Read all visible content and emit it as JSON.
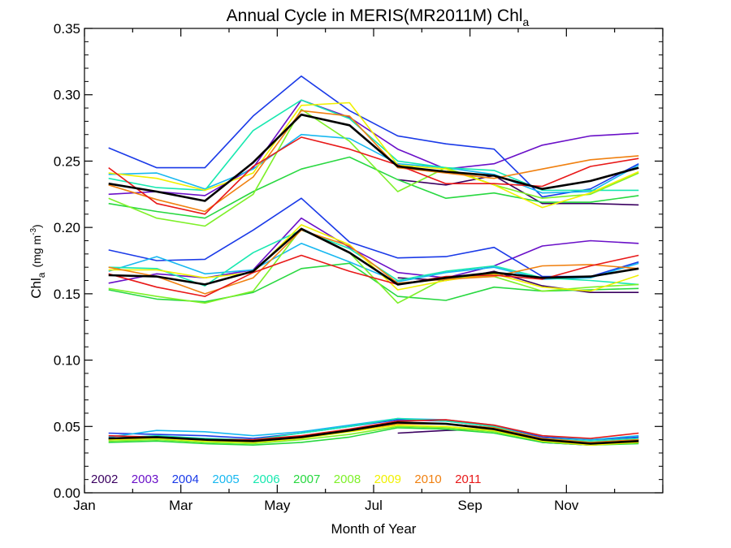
{
  "chart_data": {
    "type": "line",
    "title": "Annual Cycle in MERIS(MR2011M) Chl",
    "title_subscript": "a",
    "xlabel": "Month of Year",
    "ylabel": "Chl",
    "ylabel_subscript": "a",
    "ylabel_units": "(mg m",
    "ylabel_units_exp": "-3",
    "ylabel_units_close": ")",
    "xlim": [
      1,
      13
    ],
    "ylim": [
      0.0,
      0.35
    ],
    "xticks": [
      {
        "value": 1,
        "label": "Jan"
      },
      {
        "value": 3,
        "label": "Mar"
      },
      {
        "value": 5,
        "label": "May"
      },
      {
        "value": 7,
        "label": "Jul"
      },
      {
        "value": 9,
        "label": "Sep"
      },
      {
        "value": 11,
        "label": "Nov"
      }
    ],
    "yticks": [
      {
        "value": 0.0,
        "label": "0.00"
      },
      {
        "value": 0.05,
        "label": "0.05"
      },
      {
        "value": 0.1,
        "label": "0.10"
      },
      {
        "value": 0.15,
        "label": "0.15"
      },
      {
        "value": 0.2,
        "label": "0.20"
      },
      {
        "value": 0.25,
        "label": "0.25"
      },
      {
        "value": 0.3,
        "label": "0.30"
      },
      {
        "value": 0.35,
        "label": "0.35"
      }
    ],
    "grid": false,
    "legend_placement": "bottom-left",
    "x": [
      1.5,
      2.5,
      3.5,
      4.5,
      5.5,
      6.5,
      7.5,
      8.5,
      9.5,
      10.5,
      11.5,
      12.5
    ],
    "series": [
      {
        "name": "2002",
        "color": "#3a0060",
        "upper": [
          null,
          null,
          null,
          null,
          null,
          null,
          0.236,
          0.232,
          0.239,
          0.218,
          0.218,
          0.217
        ],
        "middle": [
          null,
          null,
          null,
          null,
          null,
          null,
          0.162,
          0.16,
          0.167,
          0.156,
          0.151,
          0.151
        ],
        "lower": [
          null,
          null,
          null,
          null,
          null,
          null,
          0.045,
          0.047,
          0.048,
          0.038,
          0.036,
          0.038
        ]
      },
      {
        "name": "2003",
        "color": "#6a10c8",
        "upper": [
          0.225,
          0.227,
          0.224,
          0.245,
          0.296,
          0.283,
          0.259,
          0.244,
          0.248,
          0.262,
          0.269,
          0.271
        ],
        "middle": [
          0.158,
          0.165,
          0.162,
          0.168,
          0.207,
          0.185,
          0.166,
          0.162,
          0.171,
          0.186,
          0.19,
          0.188
        ],
        "lower": [
          0.04,
          0.042,
          0.04,
          0.039,
          0.042,
          0.047,
          0.052,
          0.052,
          0.049,
          0.041,
          0.038,
          0.04
        ]
      },
      {
        "name": "2004",
        "color": "#1a3ae8",
        "upper": [
          0.26,
          0.245,
          0.245,
          0.284,
          0.314,
          0.288,
          0.269,
          0.263,
          0.259,
          0.223,
          0.229,
          0.248
        ],
        "middle": [
          0.183,
          0.175,
          0.176,
          0.198,
          0.222,
          0.189,
          0.177,
          0.178,
          0.185,
          0.163,
          0.163,
          0.174
        ],
        "lower": [
          0.045,
          0.044,
          0.043,
          0.041,
          0.045,
          0.05,
          0.055,
          0.054,
          0.05,
          0.042,
          0.04,
          0.042
        ]
      },
      {
        "name": "2005",
        "color": "#18b8f0",
        "upper": [
          0.24,
          0.241,
          0.229,
          0.244,
          0.27,
          0.267,
          0.248,
          0.245,
          0.24,
          0.226,
          0.227,
          0.247
        ],
        "middle": [
          0.167,
          0.178,
          0.165,
          0.168,
          0.188,
          0.174,
          0.159,
          0.166,
          0.17,
          0.161,
          0.162,
          0.173
        ],
        "lower": [
          0.042,
          0.047,
          0.046,
          0.043,
          0.046,
          0.051,
          0.056,
          0.055,
          0.051,
          0.043,
          0.04,
          0.043
        ]
      },
      {
        "name": "2006",
        "color": "#18e8b0",
        "upper": [
          0.237,
          0.23,
          0.228,
          0.273,
          0.296,
          0.282,
          0.25,
          0.245,
          0.243,
          0.228,
          0.228,
          0.228
        ],
        "middle": [
          0.17,
          0.169,
          0.156,
          0.181,
          0.198,
          0.184,
          0.16,
          0.167,
          0.171,
          0.162,
          0.16,
          0.157
        ],
        "lower": [
          0.041,
          0.043,
          0.041,
          0.04,
          0.045,
          0.05,
          0.056,
          0.054,
          0.05,
          0.041,
          0.039,
          0.041
        ]
      },
      {
        "name": "2007",
        "color": "#28d840",
        "upper": [
          0.218,
          0.212,
          0.207,
          0.227,
          0.244,
          0.253,
          0.236,
          0.222,
          0.226,
          0.219,
          0.219,
          0.224
        ],
        "middle": [
          0.153,
          0.146,
          0.144,
          0.151,
          0.169,
          0.173,
          0.148,
          0.145,
          0.155,
          0.152,
          0.153,
          0.154
        ],
        "lower": [
          0.038,
          0.039,
          0.037,
          0.036,
          0.038,
          0.042,
          0.049,
          0.048,
          0.045,
          0.038,
          0.036,
          0.037
        ]
      },
      {
        "name": "2008",
        "color": "#7ef028",
        "upper": [
          0.222,
          0.207,
          0.201,
          0.225,
          0.289,
          0.265,
          0.227,
          0.245,
          0.232,
          0.222,
          0.225,
          0.241
        ],
        "middle": [
          0.154,
          0.148,
          0.143,
          0.152,
          0.199,
          0.181,
          0.143,
          0.162,
          0.163,
          0.152,
          0.155,
          0.157
        ],
        "lower": [
          0.039,
          0.04,
          0.038,
          0.037,
          0.04,
          0.044,
          0.05,
          0.049,
          0.046,
          0.039,
          0.036,
          0.038
        ]
      },
      {
        "name": "2009",
        "color": "#f0f000",
        "upper": [
          0.241,
          0.237,
          0.228,
          0.241,
          0.292,
          0.294,
          0.247,
          0.244,
          0.232,
          0.215,
          0.226,
          0.242
        ],
        "middle": [
          0.168,
          0.168,
          0.162,
          0.166,
          0.202,
          0.187,
          0.153,
          0.16,
          0.165,
          0.155,
          0.152,
          0.164
        ],
        "lower": [
          0.04,
          0.041,
          0.039,
          0.038,
          0.041,
          0.046,
          0.051,
          0.05,
          0.047,
          0.039,
          0.036,
          0.038
        ]
      },
      {
        "name": "2010",
        "color": "#f08010",
        "upper": [
          0.232,
          0.221,
          0.212,
          0.238,
          0.288,
          0.284,
          0.245,
          0.241,
          0.237,
          0.244,
          0.251,
          0.254
        ],
        "middle": [
          0.17,
          0.163,
          0.15,
          0.162,
          0.198,
          0.186,
          0.158,
          0.161,
          0.163,
          0.171,
          0.172,
          0.169
        ],
        "lower": [
          0.041,
          0.042,
          0.04,
          0.039,
          0.042,
          0.047,
          0.052,
          0.052,
          0.049,
          0.041,
          0.038,
          0.04
        ]
      },
      {
        "name": "2011",
        "color": "#e81818",
        "upper": [
          0.245,
          0.218,
          0.21,
          0.246,
          0.268,
          0.259,
          0.247,
          0.233,
          0.233,
          0.231,
          0.246,
          0.252
        ],
        "middle": [
          0.165,
          0.155,
          0.148,
          0.166,
          0.179,
          0.167,
          0.157,
          0.163,
          0.164,
          0.161,
          0.171,
          0.179
        ],
        "lower": [
          0.043,
          0.042,
          0.04,
          0.04,
          0.043,
          0.048,
          0.054,
          0.055,
          0.051,
          0.043,
          0.041,
          0.045
        ]
      },
      {
        "name": "",
        "color": "#000000",
        "thick": true,
        "upper": [
          0.233,
          0.227,
          0.22,
          0.249,
          0.285,
          0.277,
          0.246,
          0.242,
          0.239,
          0.229,
          0.235,
          0.245
        ],
        "middle": [
          0.164,
          0.163,
          0.157,
          0.167,
          0.199,
          0.181,
          0.157,
          0.162,
          0.166,
          0.162,
          0.163,
          0.169
        ],
        "lower": [
          0.041,
          0.042,
          0.04,
          0.039,
          0.042,
          0.047,
          0.053,
          0.052,
          0.048,
          0.04,
          0.037,
          0.039
        ]
      }
    ]
  }
}
